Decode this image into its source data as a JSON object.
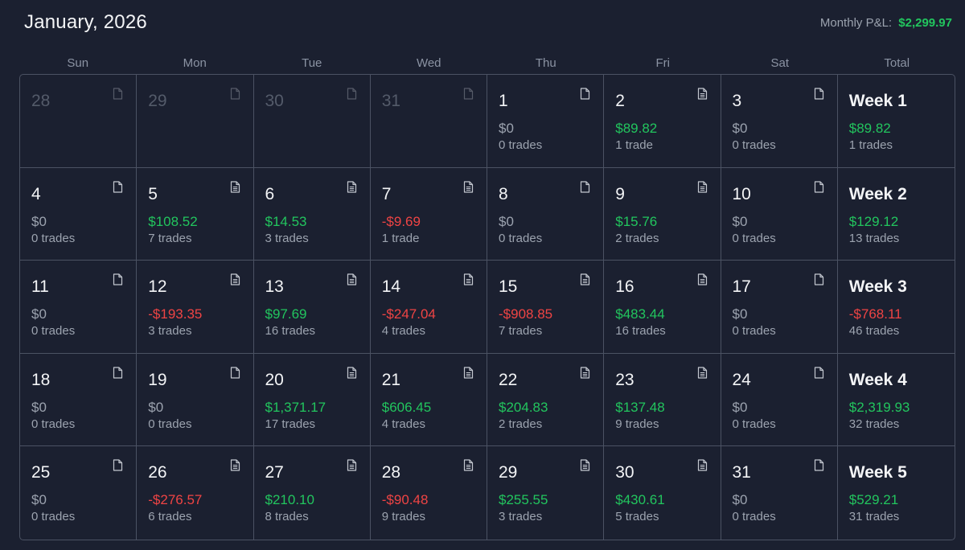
{
  "header": {
    "title": "January, 2026",
    "monthly_label": "Monthly P&L:",
    "monthly_value": "$2,299.97"
  },
  "weekdays": [
    "Sun",
    "Mon",
    "Tue",
    "Wed",
    "Thu",
    "Fri",
    "Sat",
    "Total"
  ],
  "colors": {
    "positive": "#22c55e",
    "negative": "#ef4444",
    "neutral": "#9ca3af",
    "background": "#1b2030",
    "border": "#4b5263"
  },
  "icons": {
    "day_note": "note-icon"
  },
  "weeks": [
    {
      "days": [
        {
          "day": "28",
          "muted": true
        },
        {
          "day": "29",
          "muted": true
        },
        {
          "day": "30",
          "muted": true
        },
        {
          "day": "31",
          "muted": true
        },
        {
          "day": "1",
          "pnl": "$0",
          "trades": "0 trades",
          "sign": "zero"
        },
        {
          "day": "2",
          "pnl": "$89.82",
          "trades": "1 trade",
          "sign": "pos",
          "has_notes": true
        },
        {
          "day": "3",
          "pnl": "$0",
          "trades": "0 trades",
          "sign": "zero"
        }
      ],
      "total": {
        "label": "Week 1",
        "pnl": "$89.82",
        "trades": "1 trades",
        "sign": "pos"
      }
    },
    {
      "days": [
        {
          "day": "4",
          "pnl": "$0",
          "trades": "0 trades",
          "sign": "zero"
        },
        {
          "day": "5",
          "pnl": "$108.52",
          "trades": "7 trades",
          "sign": "pos",
          "has_notes": true
        },
        {
          "day": "6",
          "pnl": "$14.53",
          "trades": "3 trades",
          "sign": "pos",
          "has_notes": true
        },
        {
          "day": "7",
          "pnl": "-$9.69",
          "trades": "1 trade",
          "sign": "neg",
          "has_notes": true
        },
        {
          "day": "8",
          "pnl": "$0",
          "trades": "0 trades",
          "sign": "zero"
        },
        {
          "day": "9",
          "pnl": "$15.76",
          "trades": "2 trades",
          "sign": "pos",
          "has_notes": true
        },
        {
          "day": "10",
          "pnl": "$0",
          "trades": "0 trades",
          "sign": "zero"
        }
      ],
      "total": {
        "label": "Week 2",
        "pnl": "$129.12",
        "trades": "13 trades",
        "sign": "pos"
      }
    },
    {
      "days": [
        {
          "day": "11",
          "pnl": "$0",
          "trades": "0 trades",
          "sign": "zero"
        },
        {
          "day": "12",
          "pnl": "-$193.35",
          "trades": "3 trades",
          "sign": "neg",
          "has_notes": true
        },
        {
          "day": "13",
          "pnl": "$97.69",
          "trades": "16 trades",
          "sign": "pos",
          "has_notes": true
        },
        {
          "day": "14",
          "pnl": "-$247.04",
          "trades": "4 trades",
          "sign": "neg",
          "has_notes": true
        },
        {
          "day": "15",
          "pnl": "-$908.85",
          "trades": "7 trades",
          "sign": "neg",
          "has_notes": true
        },
        {
          "day": "16",
          "pnl": "$483.44",
          "trades": "16 trades",
          "sign": "pos",
          "has_notes": true
        },
        {
          "day": "17",
          "pnl": "$0",
          "trades": "0 trades",
          "sign": "zero"
        }
      ],
      "total": {
        "label": "Week 3",
        "pnl": "-$768.11",
        "trades": "46 trades",
        "sign": "neg"
      }
    },
    {
      "days": [
        {
          "day": "18",
          "pnl": "$0",
          "trades": "0 trades",
          "sign": "zero"
        },
        {
          "day": "19",
          "pnl": "$0",
          "trades": "0 trades",
          "sign": "zero"
        },
        {
          "day": "20",
          "pnl": "$1,371.17",
          "trades": "17 trades",
          "sign": "pos",
          "has_notes": true
        },
        {
          "day": "21",
          "pnl": "$606.45",
          "trades": "4 trades",
          "sign": "pos",
          "has_notes": true
        },
        {
          "day": "22",
          "pnl": "$204.83",
          "trades": "2 trades",
          "sign": "pos",
          "has_notes": true
        },
        {
          "day": "23",
          "pnl": "$137.48",
          "trades": "9 trades",
          "sign": "pos",
          "has_notes": true
        },
        {
          "day": "24",
          "pnl": "$0",
          "trades": "0 trades",
          "sign": "zero"
        }
      ],
      "total": {
        "label": "Week 4",
        "pnl": "$2,319.93",
        "trades": "32 trades",
        "sign": "pos"
      }
    },
    {
      "days": [
        {
          "day": "25",
          "pnl": "$0",
          "trades": "0 trades",
          "sign": "zero"
        },
        {
          "day": "26",
          "pnl": "-$276.57",
          "trades": "6 trades",
          "sign": "neg",
          "has_notes": true
        },
        {
          "day": "27",
          "pnl": "$210.10",
          "trades": "8 trades",
          "sign": "pos",
          "has_notes": true
        },
        {
          "day": "28",
          "pnl": "-$90.48",
          "trades": "9 trades",
          "sign": "neg",
          "has_notes": true
        },
        {
          "day": "29",
          "pnl": "$255.55",
          "trades": "3 trades",
          "sign": "pos",
          "has_notes": true
        },
        {
          "day": "30",
          "pnl": "$430.61",
          "trades": "5 trades",
          "sign": "pos",
          "has_notes": true
        },
        {
          "day": "31",
          "pnl": "$0",
          "trades": "0 trades",
          "sign": "zero"
        }
      ],
      "total": {
        "label": "Week 5",
        "pnl": "$529.21",
        "trades": "31 trades",
        "sign": "pos"
      }
    }
  ]
}
